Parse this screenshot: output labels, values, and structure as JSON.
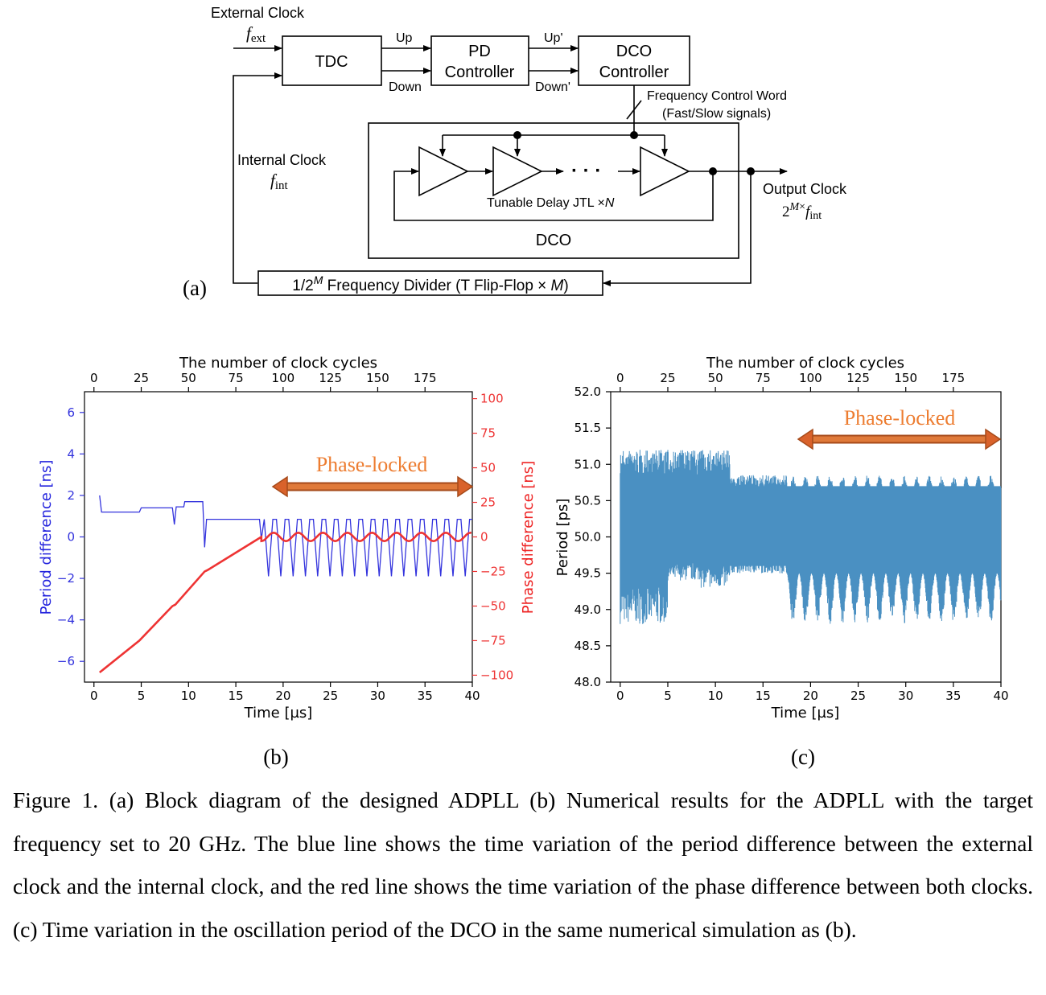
{
  "diagram": {
    "panel_label": "(a)",
    "external_clock": "External Clock",
    "f_ext_base": "f",
    "f_ext_sub": "ext",
    "internal_clock": "Internal Clock",
    "f_int_base": "f",
    "f_int_sub": "int",
    "tdc": "TDC",
    "up": "Up",
    "down": "Down",
    "pd_line1": "PD",
    "pd_line2": "Controller",
    "up_prime": "Up'",
    "down_prime": "Down'",
    "dco_line1": "DCO",
    "dco_line2": "Controller",
    "fcw_line1": "Frequency Control Word",
    "fcw_line2": "(Fast/Slow signals)",
    "jtl_label": "Tunable Delay JTL ×",
    "jtl_n": "N",
    "dco_box": "DCO",
    "output_clock": "Output Clock",
    "out_base": "2",
    "out_sup": "M",
    "out_times": "×",
    "out_f": "f",
    "out_sub": "int",
    "divider_pre": "1/2",
    "divider_sup": "M",
    "divider_mid": " Frequency Divider (T Flip-Flop × ",
    "divider_m": "M",
    "divider_post": ")",
    "dots": "· · ·"
  },
  "chart_data": [
    {
      "type": "line",
      "panel_label": "(b)",
      "xlabel": "Time [µs]",
      "x_ticks": [
        "0",
        "5",
        "10",
        "15",
        "20",
        "25",
        "30",
        "35",
        "40"
      ],
      "xlim": [
        -1,
        40
      ],
      "top_xlabel": "The number of clock cycles",
      "top_ticks": [
        "0",
        "25",
        "50",
        "75",
        "100",
        "125",
        "150",
        "175"
      ],
      "ylabel_left": "Period difference [ns]",
      "left_ticks": [
        "−6",
        "−4",
        "−2",
        "0",
        "2",
        "4",
        "6"
      ],
      "ylim_left": [
        -7,
        7
      ],
      "ylabel_right": "Phase difference [ns]",
      "right_ticks": [
        "−100",
        "−75",
        "−50",
        "−25",
        "0",
        "25",
        "50",
        "75",
        "100"
      ],
      "ylim_right": [
        -105,
        105
      ],
      "annotation": "Phase-locked",
      "locked_range": [
        19.5,
        40
      ],
      "colors": {
        "period": "#3333dd",
        "phase": "#ee3333",
        "arrow": "#d9622b",
        "text": "#ed7d31"
      },
      "series": [
        {
          "axis": "left",
          "points": [
            [
              0.6,
              2.0
            ],
            [
              0.8,
              1.2
            ],
            [
              2,
              1.2
            ],
            [
              4.8,
              1.2
            ],
            [
              5,
              1.4
            ],
            [
              8.3,
              1.4
            ],
            [
              8.5,
              0.6
            ],
            [
              8.7,
              1.45
            ],
            [
              9.5,
              1.45
            ],
            [
              9.6,
              1.7
            ],
            [
              11.5,
              1.7
            ],
            [
              11.7,
              -0.5
            ],
            [
              11.9,
              0.85
            ],
            [
              17.5,
              0.85
            ],
            [
              17.7,
              -0.1
            ],
            [
              18,
              0.85
            ]
          ],
          "oscillation": {
            "from": 18,
            "to": 40,
            "period": 1.3,
            "high": 0.85,
            "low": -1.9
          }
        },
        {
          "axis": "right",
          "points": [
            [
              0.6,
              -98
            ],
            [
              4.8,
              -75
            ],
            [
              8.3,
              -50
            ],
            [
              8.6,
              -49
            ],
            [
              11.7,
              -25
            ],
            [
              12,
              -24
            ],
            [
              17.7,
              0
            ]
          ],
          "oscillation": {
            "from": 17.7,
            "to": 40,
            "period": 2.6,
            "amplitude": 3
          }
        }
      ]
    },
    {
      "type": "area",
      "panel_label": "(c)",
      "xlabel": "Time [µs]",
      "x_ticks": [
        "0",
        "5",
        "10",
        "15",
        "20",
        "25",
        "30",
        "35",
        "40"
      ],
      "xlim": [
        -1,
        40
      ],
      "top_xlabel": "The number of clock cycles",
      "top_ticks": [
        "0",
        "25",
        "50",
        "75",
        "100",
        "125",
        "150",
        "175"
      ],
      "ylabel": "Period [ps]",
      "y_ticks": [
        "48.0",
        "48.5",
        "49.0",
        "49.5",
        "50.0",
        "50.5",
        "51.0",
        "51.5",
        "52.0"
      ],
      "ylim": [
        48,
        52
      ],
      "annotation": "Phase-locked",
      "locked_range": [
        19,
        40
      ],
      "color": "#4a90c2",
      "segments": [
        {
          "from": 0,
          "to": 5,
          "min": 48.8,
          "max": 51.2
        },
        {
          "from": 5,
          "to": 8.5,
          "min": 49.4,
          "max": 51.2
        },
        {
          "from": 8.5,
          "to": 11.5,
          "min": 49.3,
          "max": 51.2
        },
        {
          "from": 11.5,
          "to": 17.5,
          "min": 49.5,
          "max": 50.85
        },
        {
          "from": 17.5,
          "to": 40,
          "min": 48.8,
          "max": 50.85,
          "bursts_period": 1.3
        }
      ]
    }
  ],
  "caption": "Figure 1. (a) Block diagram of the designed ADPLL (b) Numerical results for the ADPLL with the target frequency set to 20 GHz. The blue line shows the time variation of the period difference between the external clock and the internal clock, and the red line shows the time variation of the phase difference between both clocks. (c) Time variation in the oscillation period of the DCO in the same numerical simulation as (b)."
}
